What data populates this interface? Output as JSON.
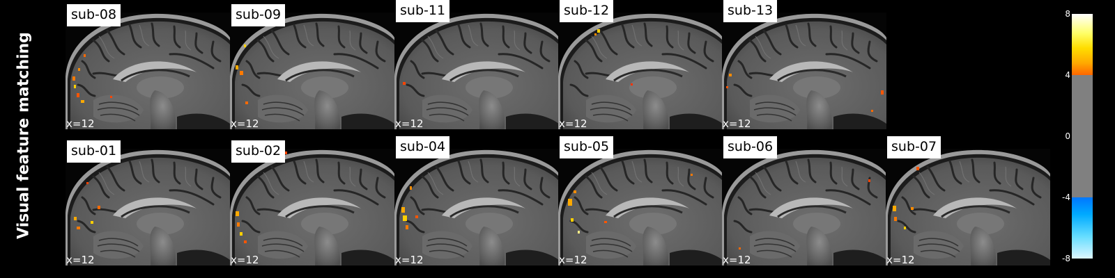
{
  "row_label": "Visual feature matching",
  "coord_label": "x=12",
  "panels_top": [
    {
      "subject": "sub-08"
    },
    {
      "subject": "sub-09"
    },
    {
      "subject": "sub-11"
    },
    {
      "subject": "sub-12"
    },
    {
      "subject": "sub-13"
    }
  ],
  "panels_bottom": [
    {
      "subject": "sub-01"
    },
    {
      "subject": "sub-02"
    },
    {
      "subject": "sub-04"
    },
    {
      "subject": "sub-05"
    },
    {
      "subject": "sub-06"
    },
    {
      "subject": "sub-07"
    }
  ],
  "colorbar": {
    "ticks": [
      "8",
      "4",
      "0",
      "-4",
      "-8"
    ],
    "colors": {
      "positive": "#ff6600",
      "positive_max": "#ffffff",
      "neutral": "#808080",
      "negative": "#0077ff",
      "negative_max": "#ddf6ff"
    }
  }
}
